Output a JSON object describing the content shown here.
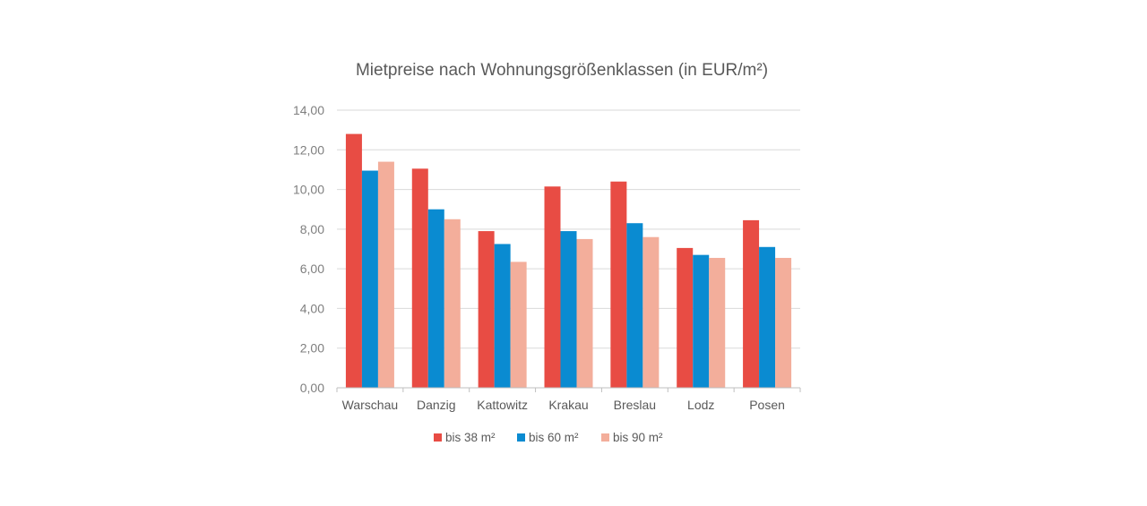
{
  "chart_data": {
    "type": "bar",
    "title": "Mietpreise nach Wohnungsgrößenklassen (in EUR/m²)",
    "xlabel": "",
    "ylabel": "",
    "ylim": [
      0,
      14
    ],
    "yticks": [
      "0,00",
      "2,00",
      "4,00",
      "6,00",
      "8,00",
      "10,00",
      "12,00",
      "14,00"
    ],
    "grid": true,
    "legend_position": "bottom",
    "categories": [
      "Warschau",
      "Danzig",
      "Kattowitz",
      "Krakau",
      "Breslau",
      "Lodz",
      "Posen"
    ],
    "series": [
      {
        "name": "bis 38 m²",
        "color": "#e84c44",
        "values": [
          12.8,
          11.05,
          7.9,
          10.15,
          10.4,
          7.05,
          8.45
        ]
      },
      {
        "name": "bis 60 m²",
        "color": "#0a8bd1",
        "values": [
          10.95,
          9.0,
          7.25,
          7.9,
          8.3,
          6.7,
          7.1
        ]
      },
      {
        "name": "bis 90 m²",
        "color": "#f3ae9b",
        "values": [
          11.4,
          8.5,
          6.35,
          7.5,
          7.6,
          6.55,
          6.55
        ]
      }
    ]
  }
}
